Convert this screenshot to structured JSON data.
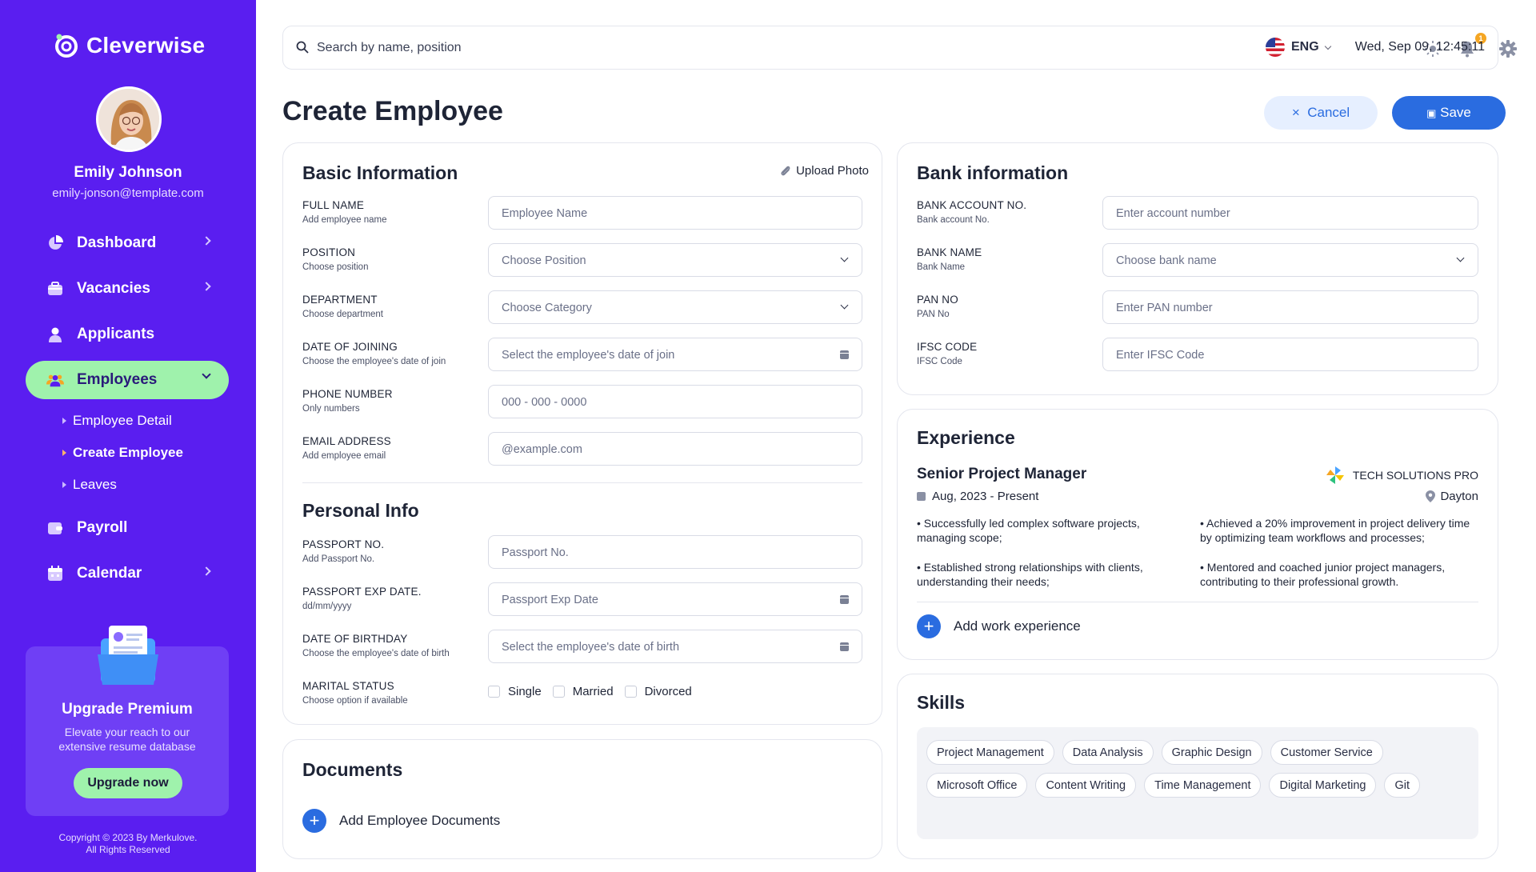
{
  "brand": {
    "name": "Cleverwise"
  },
  "user": {
    "name": "Emily Johnson",
    "email": "emily-jonson@template.com"
  },
  "nav": {
    "dashboard": "Dashboard",
    "vacancies": "Vacancies",
    "applicants": "Applicants",
    "employees": "Employees",
    "sub": [
      "Employee Detail",
      "Create Employee",
      "Leaves"
    ],
    "payroll": "Payroll",
    "calendar": "Calendar"
  },
  "premium": {
    "title": "Upgrade Premium",
    "text": "Elevate your reach to our extensive resume database",
    "button": "Upgrade now"
  },
  "copyright": {
    "line1": "Copyright © 2023 By Merkulove.",
    "line2": "All Rights Reserved"
  },
  "topbar": {
    "search_placeholder": "Search by name, position",
    "notification_count": "1",
    "language": "ENG",
    "datetime": "Wed, Sep 09, 12:45:11"
  },
  "page": {
    "title": "Create Employee",
    "cancel": "Cancel",
    "save": "Save"
  },
  "basic": {
    "title": "Basic Information",
    "upload": "Upload Photo",
    "fields": [
      {
        "label": "FULL NAME",
        "sub": "Add employee name",
        "placeholder": "Employee Name"
      },
      {
        "label": "POSITION",
        "sub": "Choose position",
        "placeholder": "Choose Position"
      },
      {
        "label": "DEPARTMENT",
        "sub": "Choose department",
        "placeholder": "Choose Category"
      },
      {
        "label": "DATE OF JOINING",
        "sub": "Choose the employee's date of join",
        "placeholder": "Select the employee's date of join"
      },
      {
        "label": "PHONE NUMBER",
        "sub": "Only numbers",
        "placeholder": "000 - 000 - 0000"
      },
      {
        "label": "EMAIL ADDRESS",
        "sub": "Add employee email",
        "placeholder": "@example.com"
      }
    ]
  },
  "personal": {
    "title": "Personal Info",
    "fields": [
      {
        "label": "PASSPORT NO.",
        "sub": "Add Passport No.",
        "placeholder": "Passport No."
      },
      {
        "label": "PASSPORT EXP DATE.",
        "sub": "dd/mm/yyyy",
        "placeholder": "Passport Exp Date"
      },
      {
        "label": "DATE OF BIRTHDAY",
        "sub": "Choose the employee's date of birth",
        "placeholder": "Select the employee's date of birth"
      }
    ],
    "marital": {
      "label": "MARITAL STATUS",
      "sub": "Choose option if available",
      "options": [
        "Single",
        "Married",
        "Divorced"
      ]
    }
  },
  "documents": {
    "title": "Documents",
    "add": "Add Employee Documents"
  },
  "bank": {
    "title": "Bank information",
    "fields": [
      {
        "label": "BANK ACCOUNT NO.",
        "sub": "Bank account No.",
        "placeholder": "Enter account number"
      },
      {
        "label": "BANK NAME",
        "sub": "Bank Name",
        "placeholder": "Choose bank name"
      },
      {
        "label": "PAN NO",
        "sub": "PAN No",
        "placeholder": "Enter PAN number"
      },
      {
        "label": "IFSC CODE",
        "sub": "IFSC Code",
        "placeholder": "Enter IFSC Code"
      }
    ]
  },
  "experience": {
    "title": "Experience",
    "role": "Senior Project Manager",
    "dates": "Aug, 2023 - Present",
    "company": "TECH SOLUTIONS PRO",
    "location": "Dayton",
    "bullets": [
      "• Successfully led complex software projects, managing scope;",
      "• Achieved a 20% improvement in project delivery time by optimizing team workflows and processes;",
      "• Established strong relationships with clients, understanding their needs;",
      "• Mentored and coached junior project managers, contributing to their professional growth."
    ],
    "add": "Add work experience"
  },
  "skills": {
    "title": "Skills",
    "row1": [
      "Project Management",
      "Data Analysis",
      "Graphic Design",
      "Customer Service"
    ],
    "row2": [
      "Microsoft Office",
      "Content Writing",
      "Time Management",
      "Digital Marketing",
      "Git"
    ]
  },
  "colors": {
    "sidebar": "#5a1ef0",
    "accent": "#2a6ce0",
    "active_nav": "#9ff2ac"
  }
}
